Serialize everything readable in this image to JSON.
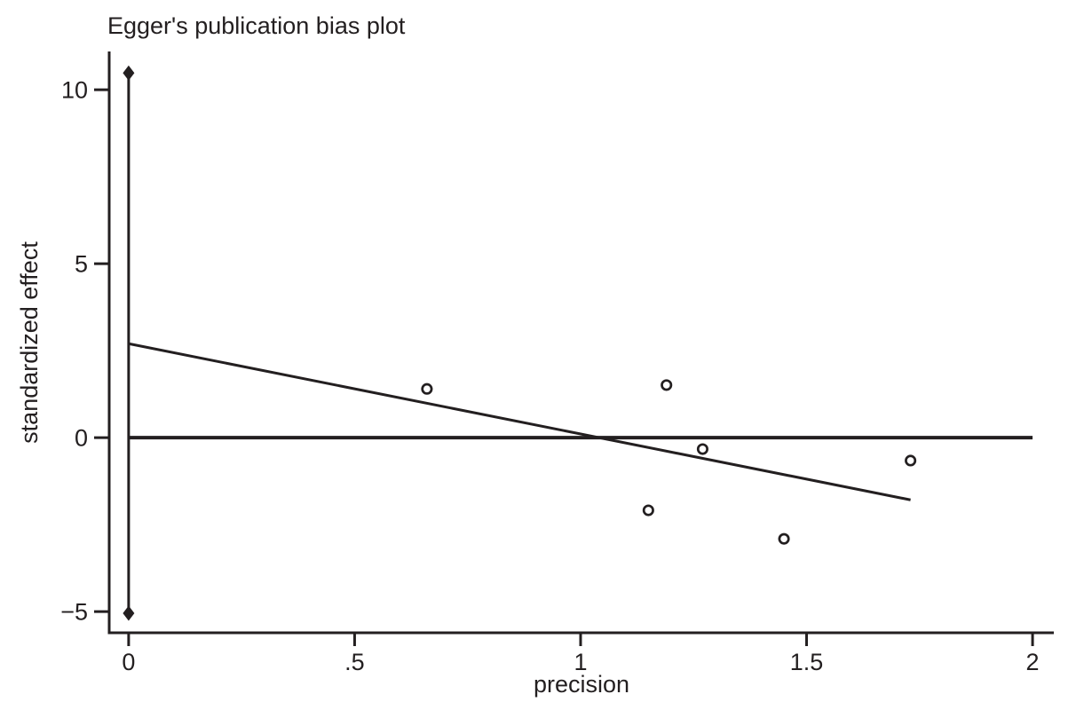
{
  "figure": {
    "title": "Egger's publication bias plot",
    "xlabel": "precision",
    "ylabel": "standardized effect"
  },
  "colors": {
    "ink": "#231f20",
    "background": "#ffffff",
    "marker_fill": "#ffffff"
  },
  "chart_data": {
    "type": "scatter",
    "title": "Egger's publication bias plot",
    "xlabel": "precision",
    "ylabel": "standardized effect",
    "xlim": [
      -0.043,
      2.047
    ],
    "ylim": [
      -5.61,
      11.1
    ],
    "grid": false,
    "legend": null,
    "x_ticks": [
      {
        "value": 0,
        "label": "0"
      },
      {
        "value": 0.5,
        "label": ".5"
      },
      {
        "value": 1,
        "label": "1"
      },
      {
        "value": 1.5,
        "label": "1.5"
      },
      {
        "value": 2,
        "label": "2"
      }
    ],
    "y_ticks": [
      {
        "value": 10,
        "label": "10"
      },
      {
        "value": 5,
        "label": "5"
      },
      {
        "value": 0,
        "label": "0"
      },
      {
        "value": -5,
        "label": "−5"
      }
    ],
    "points": [
      {
        "x": 0.66,
        "y": 1.4
      },
      {
        "x": 1.19,
        "y": 1.51
      },
      {
        "x": 1.27,
        "y": -0.33
      },
      {
        "x": 1.15,
        "y": -2.09
      },
      {
        "x": 1.45,
        "y": -2.91
      },
      {
        "x": 1.73,
        "y": -0.66
      }
    ],
    "regression_line": {
      "x1": 0,
      "y1": 2.7,
      "x2": 1.73,
      "y2": -1.79
    },
    "zero_line": {
      "y": 0,
      "x1": 0,
      "x2": 2.0
    },
    "intercept_ci": {
      "x": 0,
      "y_low": -5.05,
      "y_high": 10.48
    }
  }
}
